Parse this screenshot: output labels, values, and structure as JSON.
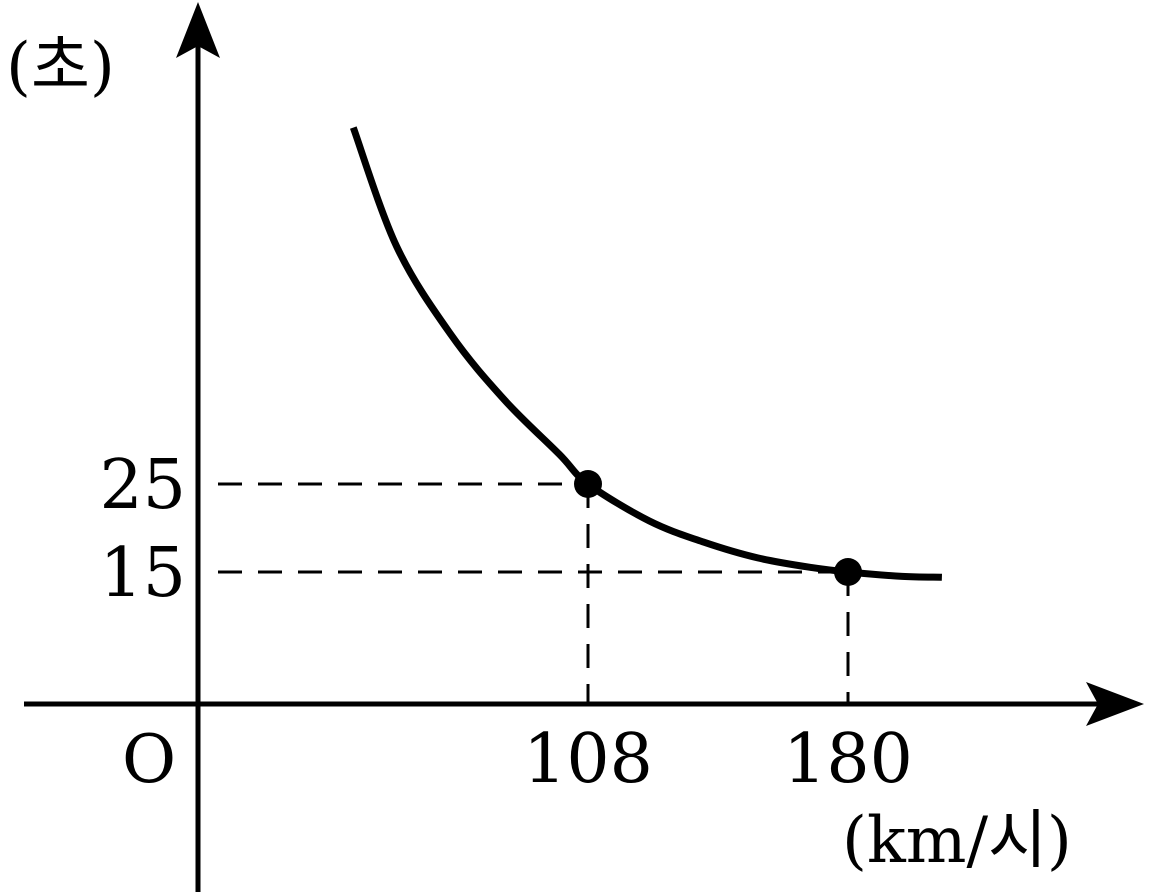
{
  "chart_data": {
    "type": "line",
    "xlabel": "(km/시)",
    "ylabel": "(초)",
    "origin_label": "O",
    "x_ticks": [
      "108",
      "180"
    ],
    "y_ticks": [
      "25",
      "15"
    ],
    "points": [
      {
        "x": 108,
        "y": 25
      },
      {
        "x": 180,
        "y": 15
      }
    ],
    "curve": [
      {
        "x": 43,
        "y": 65.5
      },
      {
        "x": 55,
        "y": 52
      },
      {
        "x": 70,
        "y": 42
      },
      {
        "x": 85,
        "y": 34.5
      },
      {
        "x": 100,
        "y": 28.4
      },
      {
        "x": 108,
        "y": 25
      },
      {
        "x": 125,
        "y": 20.8
      },
      {
        "x": 140,
        "y": 18.4
      },
      {
        "x": 155,
        "y": 16.6
      },
      {
        "x": 170,
        "y": 15.5
      },
      {
        "x": 180,
        "y": 15
      },
      {
        "x": 195,
        "y": 14.5
      },
      {
        "x": 206,
        "y": 14.4
      }
    ],
    "xlim": [
      -48,
      218
    ],
    "ylim": [
      -14,
      58
    ],
    "grid": false,
    "line_color": "#000000"
  }
}
